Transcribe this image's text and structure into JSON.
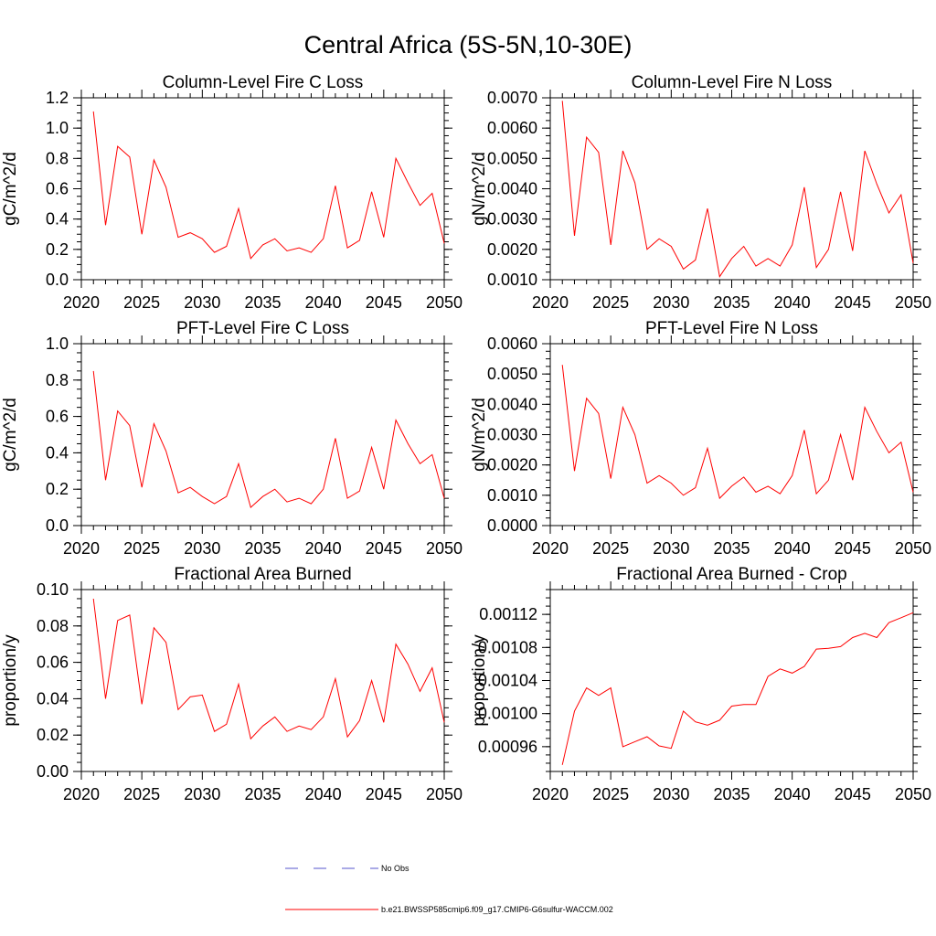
{
  "title": "Central Africa (5S-5N,10-30E)",
  "colors": {
    "series": "#ff0000",
    "no_obs": "#5555cc"
  },
  "legend": {
    "items": [
      {
        "label": "No Obs",
        "style": "dashed",
        "color": "#5555cc"
      },
      {
        "label": "b.e21.BWSSP585cmip6.f09_g17.CMIP6-G6sulfur-WACCM.002",
        "style": "solid",
        "color": "#ff0000"
      }
    ]
  },
  "chart_data": [
    {
      "type": "line",
      "title": "Column-Level Fire C Loss",
      "ylabel": "gC/m^2/d",
      "xlim": [
        2020,
        2050
      ],
      "ylim": [
        0.0,
        1.2
      ],
      "xticks": [
        2020,
        2025,
        2030,
        2035,
        2040,
        2045,
        2050
      ],
      "yticks": [
        0.0,
        0.2,
        0.4,
        0.6,
        0.8,
        1.0,
        1.2
      ],
      "ytick_labels": [
        "0.0",
        "0.2",
        "0.4",
        "0.6",
        "0.8",
        "1.0",
        "1.2"
      ],
      "minor_y": 0.05,
      "x": [
        2021,
        2022,
        2023,
        2024,
        2025,
        2026,
        2027,
        2028,
        2029,
        2030,
        2031,
        2032,
        2033,
        2034,
        2035,
        2036,
        2037,
        2038,
        2039,
        2040,
        2041,
        2042,
        2043,
        2044,
        2045,
        2046,
        2047,
        2048,
        2049,
        2050
      ],
      "series": [
        {
          "name": "b.e21.BWSSP585cmip6.f09_g17.CMIP6-G6sulfur-WACCM.002",
          "values": [
            1.11,
            0.36,
            0.88,
            0.81,
            0.3,
            0.79,
            0.61,
            0.28,
            0.31,
            0.27,
            0.18,
            0.22,
            0.47,
            0.14,
            0.23,
            0.27,
            0.19,
            0.21,
            0.18,
            0.27,
            0.62,
            0.21,
            0.26,
            0.58,
            0.28,
            0.8,
            0.64,
            0.49,
            0.57,
            0.24
          ]
        }
      ]
    },
    {
      "type": "line",
      "title": "Column-Level Fire N Loss",
      "ylabel": "gN/m^2/d",
      "xlim": [
        2020,
        2050
      ],
      "ylim": [
        0.001,
        0.007
      ],
      "xticks": [
        2020,
        2025,
        2030,
        2035,
        2040,
        2045,
        2050
      ],
      "yticks": [
        0.001,
        0.002,
        0.003,
        0.004,
        0.005,
        0.006,
        0.007
      ],
      "ytick_labels": [
        "0.0010",
        "0.0020",
        "0.0030",
        "0.0040",
        "0.0050",
        "0.0060",
        "0.0070"
      ],
      "minor_y": 0.00025,
      "x": [
        2021,
        2022,
        2023,
        2024,
        2025,
        2026,
        2027,
        2028,
        2029,
        2030,
        2031,
        2032,
        2033,
        2034,
        2035,
        2036,
        2037,
        2038,
        2039,
        2040,
        2041,
        2042,
        2043,
        2044,
        2045,
        2046,
        2047,
        2048,
        2049,
        2050
      ],
      "series": [
        {
          "name": "b.e21.BWSSP585cmip6.f09_g17.CMIP6-G6sulfur-WACCM.002",
          "values": [
            0.0069,
            0.00245,
            0.0057,
            0.0052,
            0.00215,
            0.00525,
            0.0042,
            0.002,
            0.00235,
            0.0021,
            0.00135,
            0.00165,
            0.00335,
            0.0011,
            0.0017,
            0.0021,
            0.00145,
            0.0017,
            0.00145,
            0.00215,
            0.00405,
            0.0014,
            0.002,
            0.0039,
            0.00195,
            0.00525,
            0.00415,
            0.0032,
            0.0038,
            0.00155
          ]
        }
      ]
    },
    {
      "type": "line",
      "title": "PFT-Level Fire C Loss",
      "ylabel": "gC/m^2/d",
      "xlim": [
        2020,
        2050
      ],
      "ylim": [
        0.0,
        1.0
      ],
      "xticks": [
        2020,
        2025,
        2030,
        2035,
        2040,
        2045,
        2050
      ],
      "yticks": [
        0.0,
        0.2,
        0.4,
        0.6,
        0.8,
        1.0
      ],
      "ytick_labels": [
        "0.0",
        "0.2",
        "0.4",
        "0.6",
        "0.8",
        "1.0"
      ],
      "minor_y": 0.05,
      "x": [
        2021,
        2022,
        2023,
        2024,
        2025,
        2026,
        2027,
        2028,
        2029,
        2030,
        2031,
        2032,
        2033,
        2034,
        2035,
        2036,
        2037,
        2038,
        2039,
        2040,
        2041,
        2042,
        2043,
        2044,
        2045,
        2046,
        2047,
        2048,
        2049,
        2050
      ],
      "series": [
        {
          "name": "b.e21.BWSSP585cmip6.f09_g17.CMIP6-G6sulfur-WACCM.002",
          "values": [
            0.85,
            0.25,
            0.63,
            0.55,
            0.21,
            0.56,
            0.41,
            0.18,
            0.21,
            0.16,
            0.12,
            0.16,
            0.34,
            0.1,
            0.16,
            0.2,
            0.13,
            0.15,
            0.12,
            0.2,
            0.48,
            0.15,
            0.19,
            0.43,
            0.2,
            0.58,
            0.45,
            0.34,
            0.39,
            0.15
          ]
        }
      ]
    },
    {
      "type": "line",
      "title": "PFT-Level Fire N Loss",
      "ylabel": "gN/m^2/d",
      "xlim": [
        2020,
        2050
      ],
      "ylim": [
        0.0,
        0.006
      ],
      "xticks": [
        2020,
        2025,
        2030,
        2035,
        2040,
        2045,
        2050
      ],
      "yticks": [
        0.0,
        0.001,
        0.002,
        0.003,
        0.004,
        0.005,
        0.006
      ],
      "ytick_labels": [
        "0.0000",
        "0.0010",
        "0.0020",
        "0.0030",
        "0.0040",
        "0.0050",
        "0.0060"
      ],
      "minor_y": 0.00025,
      "x": [
        2021,
        2022,
        2023,
        2024,
        2025,
        2026,
        2027,
        2028,
        2029,
        2030,
        2031,
        2032,
        2033,
        2034,
        2035,
        2036,
        2037,
        2038,
        2039,
        2040,
        2041,
        2042,
        2043,
        2044,
        2045,
        2046,
        2047,
        2048,
        2049,
        2050
      ],
      "series": [
        {
          "name": "b.e21.BWSSP585cmip6.f09_g17.CMIP6-G6sulfur-WACCM.002",
          "values": [
            0.0053,
            0.0018,
            0.0042,
            0.0037,
            0.00155,
            0.0039,
            0.003,
            0.0014,
            0.00165,
            0.0014,
            0.001,
            0.00125,
            0.00255,
            0.0009,
            0.0013,
            0.0016,
            0.0011,
            0.0013,
            0.00105,
            0.00165,
            0.00315,
            0.00105,
            0.0015,
            0.003,
            0.0015,
            0.0039,
            0.0031,
            0.0024,
            0.00275,
            0.0011
          ]
        }
      ]
    },
    {
      "type": "line",
      "title": "Fractional Area Burned",
      "ylabel": "proportion/y",
      "xlim": [
        2020,
        2050
      ],
      "ylim": [
        0.0,
        0.1
      ],
      "xticks": [
        2020,
        2025,
        2030,
        2035,
        2040,
        2045,
        2050
      ],
      "yticks": [
        0.0,
        0.02,
        0.04,
        0.06,
        0.08,
        0.1
      ],
      "ytick_labels": [
        "0.00",
        "0.02",
        "0.04",
        "0.06",
        "0.08",
        "0.10"
      ],
      "minor_y": 0.005,
      "x": [
        2021,
        2022,
        2023,
        2024,
        2025,
        2026,
        2027,
        2028,
        2029,
        2030,
        2031,
        2032,
        2033,
        2034,
        2035,
        2036,
        2037,
        2038,
        2039,
        2040,
        2041,
        2042,
        2043,
        2044,
        2045,
        2046,
        2047,
        2048,
        2049,
        2050
      ],
      "series": [
        {
          "name": "b.e21.BWSSP585cmip6.f09_g17.CMIP6-G6sulfur-WACCM.002",
          "values": [
            0.095,
            0.04,
            0.083,
            0.086,
            0.037,
            0.079,
            0.071,
            0.034,
            0.041,
            0.042,
            0.022,
            0.026,
            0.048,
            0.018,
            0.025,
            0.03,
            0.022,
            0.025,
            0.023,
            0.03,
            0.051,
            0.019,
            0.028,
            0.05,
            0.027,
            0.07,
            0.059,
            0.044,
            0.057,
            0.027
          ]
        }
      ]
    },
    {
      "type": "line",
      "title": "Fractional Area Burned - Crop",
      "ylabel": "proportion/y",
      "xlim": [
        2020,
        2050
      ],
      "ylim": [
        0.00093,
        0.00115
      ],
      "xticks": [
        2020,
        2025,
        2030,
        2035,
        2040,
        2045,
        2050
      ],
      "yticks": [
        0.00096,
        0.001,
        0.00104,
        0.00108,
        0.00112
      ],
      "ytick_labels": [
        "0.00096",
        "0.00100",
        "0.00104",
        "0.00108",
        "0.00112"
      ],
      "minor_y": 1e-05,
      "x": [
        2021,
        2022,
        2023,
        2024,
        2025,
        2026,
        2027,
        2028,
        2029,
        2030,
        2031,
        2032,
        2033,
        2034,
        2035,
        2036,
        2037,
        2038,
        2039,
        2040,
        2041,
        2042,
        2043,
        2044,
        2045,
        2046,
        2047,
        2048,
        2049,
        2050
      ],
      "series": [
        {
          "name": "b.e21.BWSSP585cmip6.f09_g17.CMIP6-G6sulfur-WACCM.002",
          "values": [
            0.000938,
            0.001003,
            0.001031,
            0.001022,
            0.001031,
            0.00096,
            0.000966,
            0.000972,
            0.000961,
            0.000958,
            0.001003,
            0.00099,
            0.000986,
            0.000992,
            0.001009,
            0.001011,
            0.001011,
            0.001045,
            0.001054,
            0.001049,
            0.001057,
            0.001078,
            0.001079,
            0.001081,
            0.001092,
            0.001097,
            0.001092,
            0.00111,
            0.001116,
            0.001122
          ]
        }
      ]
    }
  ]
}
